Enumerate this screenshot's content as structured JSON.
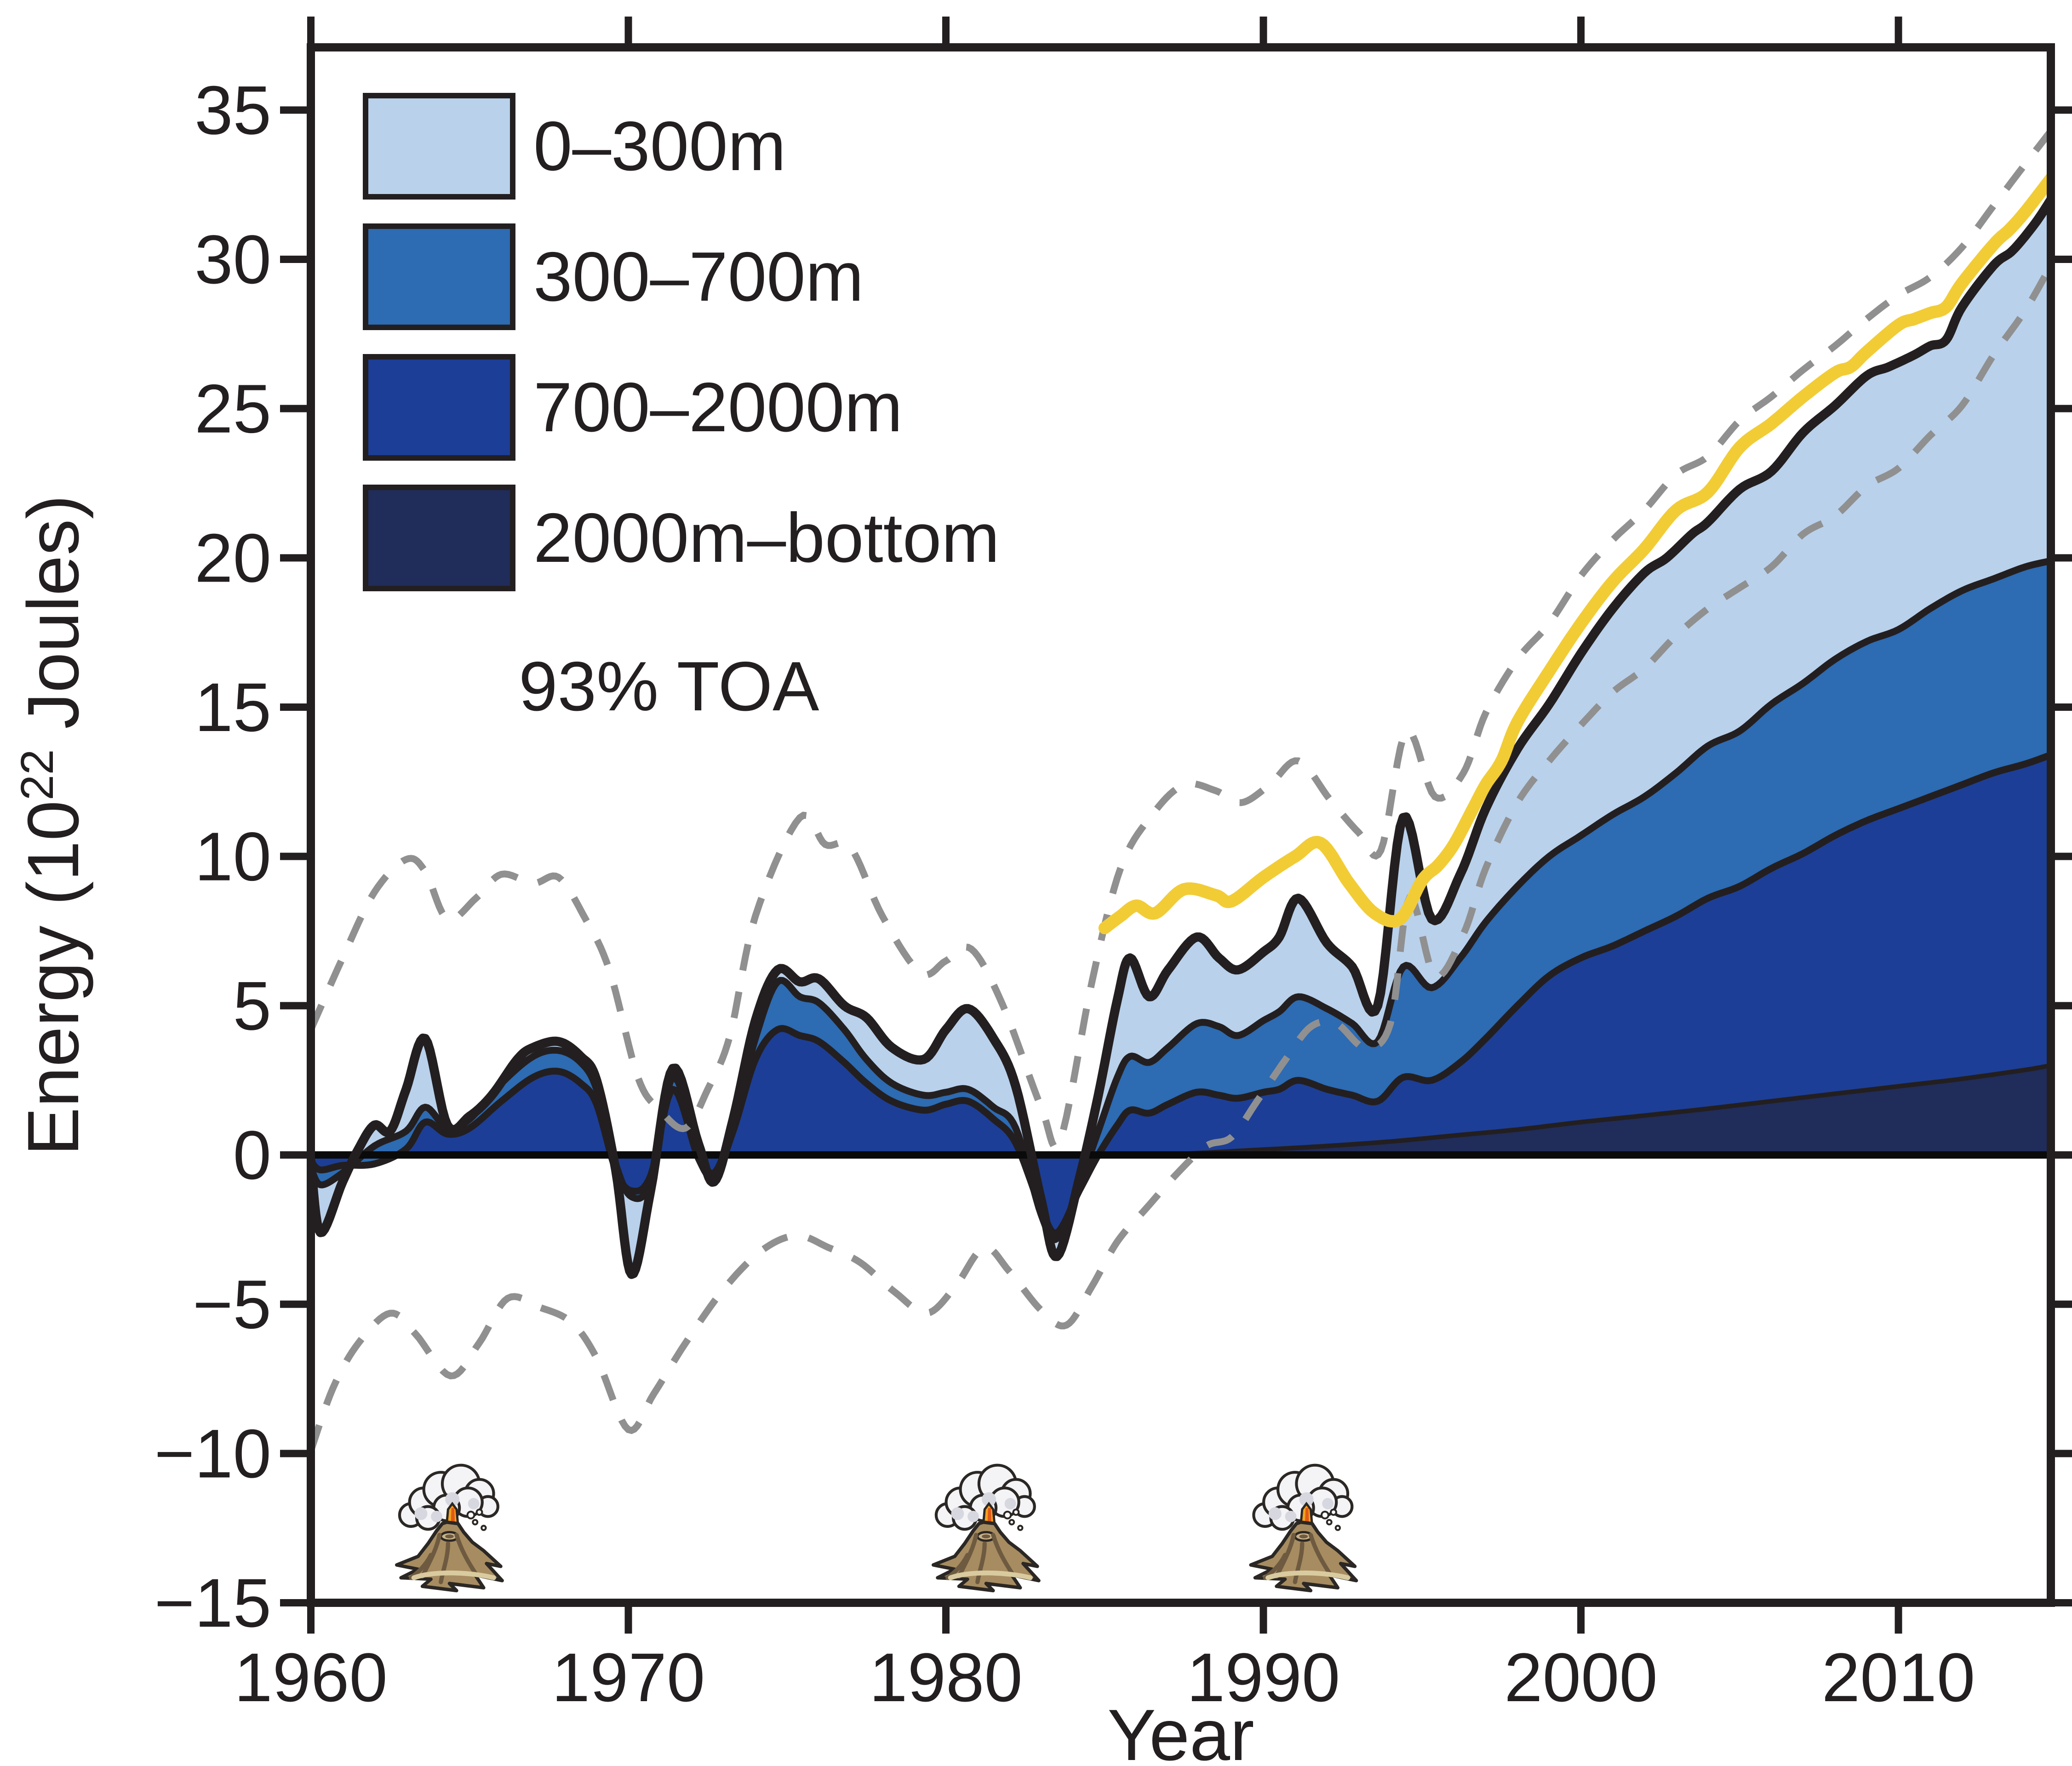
{
  "axes": {
    "x": {
      "label": "Year",
      "ticks": [
        1960,
        1970,
        1980,
        1990,
        2000,
        2010
      ],
      "range": [
        1960,
        2014.8
      ]
    },
    "y": {
      "label_prefix": "Energy (10",
      "label_superscript": "22",
      "label_suffix": " Joules)",
      "ticks": [
        -15,
        -10,
        -5,
        0,
        5,
        10,
        15,
        20,
        25,
        30,
        35
      ],
      "range": [
        -15,
        37.1
      ]
    }
  },
  "legend": {
    "items": [
      {
        "label": "0–300m",
        "color": "#b9d1eb"
      },
      {
        "label": "300–700m",
        "color": "#2d6bb3"
      },
      {
        "label": "700–2000m",
        "color": "#1c3e96"
      },
      {
        "label": "2000m–bottom",
        "color": "#202c5a"
      }
    ],
    "toa": {
      "label": "93% TOA",
      "color": "#f0c94e"
    }
  },
  "colors": {
    "outline": "#231f20",
    "zero_line": "#0a0a0a",
    "uncertainty": "#909090",
    "toa_line": "#f2cc35"
  },
  "volcanic_eruptions": {
    "years": [
      1964.5,
      1981.4,
      1991.4
    ]
  },
  "chart_data": {
    "type": "area",
    "title": "",
    "xlabel": "Year",
    "ylabel": "Energy (10^22 Joules)",
    "units": "10^22 J",
    "x_range": [
      1960,
      2014.8
    ],
    "y_range": [
      -15,
      37.1
    ],
    "legend_position": "upper-left",
    "grid": false,
    "boundaries_note": "cumulative tops of stacked depth layers, relative to 1960",
    "deep_2000m_bottom": [
      [
        1960,
        0
      ],
      [
        1970,
        0
      ],
      [
        1980,
        0
      ],
      [
        1985,
        0
      ],
      [
        1987,
        0.02
      ],
      [
        1990,
        0.18
      ],
      [
        1992,
        0.3
      ],
      [
        1994,
        0.45
      ],
      [
        1996,
        0.65
      ],
      [
        1998,
        0.85
      ],
      [
        2000,
        1.1
      ],
      [
        2002,
        1.32
      ],
      [
        2004,
        1.55
      ],
      [
        2006,
        1.8
      ],
      [
        2008,
        2.05
      ],
      [
        2010,
        2.3
      ],
      [
        2012,
        2.55
      ],
      [
        2014,
        2.85
      ],
      [
        2014.8,
        3.0
      ]
    ],
    "top_700_2000m": [
      [
        1960,
        -0.2
      ],
      [
        1960.3,
        -0.5
      ],
      [
        1961,
        -0.35
      ],
      [
        1962,
        -0.3
      ],
      [
        1963,
        0.2
      ],
      [
        1963.6,
        1.1
      ],
      [
        1964.3,
        0.7
      ],
      [
        1965,
        0.9
      ],
      [
        1966,
        1.8
      ],
      [
        1967,
        2.6
      ],
      [
        1967.8,
        2.8
      ],
      [
        1968.5,
        2.4
      ],
      [
        1969,
        1.7
      ],
      [
        1969.6,
        -0.5
      ],
      [
        1970.1,
        -1.2
      ],
      [
        1970.7,
        -0.7
      ],
      [
        1971.4,
        2.2
      ],
      [
        1972.2,
        -0.1
      ],
      [
        1972.7,
        -0.7
      ],
      [
        1973.3,
        0.8
      ],
      [
        1974,
        3.2
      ],
      [
        1974.7,
        4.2
      ],
      [
        1975.4,
        4.0
      ],
      [
        1976,
        3.8
      ],
      [
        1976.8,
        3.1
      ],
      [
        1977.5,
        2.4
      ],
      [
        1978.3,
        1.8
      ],
      [
        1979.3,
        1.5
      ],
      [
        1980,
        1.7
      ],
      [
        1980.7,
        1.8
      ],
      [
        1981.5,
        1.2
      ],
      [
        1982.2,
        0.4
      ],
      [
        1983,
        -1.8
      ],
      [
        1983.5,
        -2.6
      ],
      [
        1984.2,
        -1.2
      ],
      [
        1984.8,
        0.0
      ],
      [
        1985.4,
        1.0
      ],
      [
        1985.8,
        1.5
      ],
      [
        1986.4,
        1.4
      ],
      [
        1987,
        1.7
      ],
      [
        1987.9,
        2.1
      ],
      [
        1988.6,
        2.0
      ],
      [
        1989.2,
        1.9
      ],
      [
        1990,
        2.1
      ],
      [
        1990.5,
        2.2
      ],
      [
        1991.1,
        2.5
      ],
      [
        1992,
        2.2
      ],
      [
        1992.8,
        2.0
      ],
      [
        1993.6,
        1.8
      ],
      [
        1994.4,
        2.6
      ],
      [
        1995.3,
        2.5
      ],
      [
        1996.2,
        3.1
      ],
      [
        1997,
        3.9
      ],
      [
        1998,
        5.0
      ],
      [
        1999,
        6.0
      ],
      [
        2000,
        6.6
      ],
      [
        2001,
        7.0
      ],
      [
        2002,
        7.5
      ],
      [
        2003,
        8.0
      ],
      [
        2004,
        8.6
      ],
      [
        2005,
        9.0
      ],
      [
        2006,
        9.6
      ],
      [
        2007,
        10.1
      ],
      [
        2008,
        10.7
      ],
      [
        2009,
        11.2
      ],
      [
        2010,
        11.6
      ],
      [
        2011,
        12.0
      ],
      [
        2012,
        12.4
      ],
      [
        2013,
        12.8
      ],
      [
        2014,
        13.1
      ],
      [
        2014.8,
        13.4
      ]
    ],
    "top_300_700m": [
      [
        1960,
        -0.4
      ],
      [
        1960.3,
        -1.0
      ],
      [
        1961,
        -0.6
      ],
      [
        1962,
        0.3
      ],
      [
        1963,
        0.8
      ],
      [
        1963.6,
        1.6
      ],
      [
        1964.3,
        0.9
      ],
      [
        1965,
        1.2
      ],
      [
        1966,
        2.4
      ],
      [
        1967,
        3.3
      ],
      [
        1967.8,
        3.5
      ],
      [
        1968.5,
        3.1
      ],
      [
        1969,
        2.2
      ],
      [
        1969.6,
        -0.3
      ],
      [
        1970.1,
        -1.4
      ],
      [
        1970.7,
        -0.9
      ],
      [
        1971.4,
        2.6
      ],
      [
        1972.2,
        0.2
      ],
      [
        1972.7,
        -0.6
      ],
      [
        1973.3,
        1.0
      ],
      [
        1974,
        3.9
      ],
      [
        1974.7,
        5.8
      ],
      [
        1975.4,
        5.3
      ],
      [
        1976,
        5.1
      ],
      [
        1976.8,
        4.2
      ],
      [
        1977.5,
        3.2
      ],
      [
        1978.3,
        2.4
      ],
      [
        1979.3,
        2.0
      ],
      [
        1980,
        2.1
      ],
      [
        1980.7,
        2.2
      ],
      [
        1981.5,
        1.6
      ],
      [
        1982.2,
        0.9
      ],
      [
        1983,
        -2.0
      ],
      [
        1983.5,
        -2.8
      ],
      [
        1984.2,
        -1.0
      ],
      [
        1984.8,
        0.8
      ],
      [
        1985.4,
        2.6
      ],
      [
        1985.8,
        3.3
      ],
      [
        1986.4,
        3.1
      ],
      [
        1987,
        3.6
      ],
      [
        1987.9,
        4.4
      ],
      [
        1988.6,
        4.3
      ],
      [
        1989.2,
        4.0
      ],
      [
        1990,
        4.5
      ],
      [
        1990.5,
        4.8
      ],
      [
        1991.1,
        5.3
      ],
      [
        1992,
        4.9
      ],
      [
        1992.8,
        4.4
      ],
      [
        1993.6,
        3.8
      ],
      [
        1994.4,
        6.3
      ],
      [
        1995.3,
        5.6
      ],
      [
        1996.2,
        6.6
      ],
      [
        1997,
        7.8
      ],
      [
        1998,
        9.0
      ],
      [
        1999,
        10.0
      ],
      [
        2000,
        10.7
      ],
      [
        2001,
        11.4
      ],
      [
        2002,
        12.0
      ],
      [
        2003,
        12.8
      ],
      [
        2004,
        13.7
      ],
      [
        2005,
        14.2
      ],
      [
        2006,
        15.1
      ],
      [
        2007,
        15.8
      ],
      [
        2008,
        16.6
      ],
      [
        2009,
        17.2
      ],
      [
        2010,
        17.6
      ],
      [
        2011,
        18.3
      ],
      [
        2012,
        18.9
      ],
      [
        2013,
        19.3
      ],
      [
        2014,
        19.7
      ],
      [
        2014.8,
        19.9
      ]
    ],
    "total_top_0_300m": [
      [
        1960,
        -0.2
      ],
      [
        1960.3,
        -2.6
      ],
      [
        1961,
        -0.9
      ],
      [
        1961.5,
        0.2
      ],
      [
        1962,
        1.0
      ],
      [
        1962.5,
        0.8
      ],
      [
        1963,
        2.2
      ],
      [
        1963.6,
        3.9
      ],
      [
        1964.3,
        1.0
      ],
      [
        1965,
        1.3
      ],
      [
        1965.7,
        2.0
      ],
      [
        1966.5,
        3.2
      ],
      [
        1967,
        3.6
      ],
      [
        1967.8,
        3.8
      ],
      [
        1968.5,
        3.3
      ],
      [
        1969,
        2.5
      ],
      [
        1969.6,
        -0.5
      ],
      [
        1970.1,
        -4.0
      ],
      [
        1970.7,
        -1.2
      ],
      [
        1971.4,
        2.9
      ],
      [
        1972.2,
        0.4
      ],
      [
        1972.7,
        -0.9
      ],
      [
        1973.3,
        1.2
      ],
      [
        1974,
        4.5
      ],
      [
        1974.7,
        6.2
      ],
      [
        1975.4,
        5.8
      ],
      [
        1976,
        5.9
      ],
      [
        1976.8,
        5.0
      ],
      [
        1977.5,
        4.6
      ],
      [
        1978.3,
        3.6
      ],
      [
        1979.3,
        3.2
      ],
      [
        1980,
        4.2
      ],
      [
        1980.7,
        4.9
      ],
      [
        1981.5,
        3.9
      ],
      [
        1982.2,
        2.3
      ],
      [
        1983,
        -1.5
      ],
      [
        1983.5,
        -3.4
      ],
      [
        1984.2,
        -0.8
      ],
      [
        1984.8,
        2.0
      ],
      [
        1985.4,
        5.2
      ],
      [
        1985.8,
        6.6
      ],
      [
        1986.4,
        5.3
      ],
      [
        1987,
        6.2
      ],
      [
        1987.9,
        7.3
      ],
      [
        1988.6,
        6.6
      ],
      [
        1989.2,
        6.2
      ],
      [
        1990,
        6.8
      ],
      [
        1990.5,
        7.3
      ],
      [
        1991.1,
        8.6
      ],
      [
        1992,
        7.1
      ],
      [
        1992.8,
        6.3
      ],
      [
        1993.6,
        5.0
      ],
      [
        1994.4,
        11.3
      ],
      [
        1995.3,
        7.9
      ],
      [
        1996.2,
        9.4
      ],
      [
        1997,
        11.6
      ],
      [
        1998,
        13.6
      ],
      [
        1999,
        15.1
      ],
      [
        2000,
        16.8
      ],
      [
        2001,
        18.3
      ],
      [
        2002,
        19.5
      ],
      [
        2002.7,
        20.0
      ],
      [
        2003.5,
        20.8
      ],
      [
        2004,
        21.2
      ],
      [
        2005,
        22.3
      ],
      [
        2006,
        22.9
      ],
      [
        2007,
        24.2
      ],
      [
        2008,
        25.1
      ],
      [
        2009,
        26.1
      ],
      [
        2009.7,
        26.4
      ],
      [
        2010.5,
        26.8
      ],
      [
        2011,
        27.1
      ],
      [
        2011.5,
        27.3
      ],
      [
        2012,
        28.4
      ],
      [
        2013,
        29.8
      ],
      [
        2013.6,
        30.3
      ],
      [
        2014.3,
        31.2
      ],
      [
        2014.8,
        32.0
      ]
    ],
    "toa_93pct": [
      [
        1985,
        7.6
      ],
      [
        1985.5,
        8.0
      ],
      [
        1986,
        8.35
      ],
      [
        1986.6,
        8.1
      ],
      [
        1987.5,
        8.9
      ],
      [
        1988.5,
        8.7
      ],
      [
        1989,
        8.5
      ],
      [
        1990,
        9.3
      ],
      [
        1991,
        10.0
      ],
      [
        1991.8,
        10.45
      ],
      [
        1992.7,
        9.1
      ],
      [
        1993.5,
        8.1
      ],
      [
        1994.3,
        7.9
      ],
      [
        1995,
        9.2
      ],
      [
        1995.5,
        9.7
      ],
      [
        1996,
        10.4
      ],
      [
        1996.6,
        11.6
      ],
      [
        1997,
        12.4
      ],
      [
        1997.5,
        13.2
      ],
      [
        1998,
        14.5
      ],
      [
        1999,
        16.2
      ],
      [
        2000,
        17.8
      ],
      [
        2001,
        19.2
      ],
      [
        2002,
        20.3
      ],
      [
        2003,
        21.6
      ],
      [
        2004,
        22.2
      ],
      [
        2005,
        23.7
      ],
      [
        2006,
        24.5
      ],
      [
        2007,
        25.4
      ],
      [
        2008,
        26.2
      ],
      [
        2008.5,
        26.4
      ],
      [
        2009,
        26.9
      ],
      [
        2010,
        27.8
      ],
      [
        2010.5,
        28.0
      ],
      [
        2011,
        28.2
      ],
      [
        2011.5,
        28.4
      ],
      [
        2012,
        29.2
      ],
      [
        2013,
        30.5
      ],
      [
        2013.5,
        31.0
      ],
      [
        2014,
        31.6
      ],
      [
        2014.8,
        32.7
      ]
    ],
    "uncertainty_upper": [
      [
        1960,
        4.2
      ],
      [
        1961,
        6.6
      ],
      [
        1962,
        8.8
      ],
      [
        1963,
        9.9
      ],
      [
        1963.6,
        9.5
      ],
      [
        1964.3,
        7.9
      ],
      [
        1965.2,
        8.6
      ],
      [
        1966,
        9.4
      ],
      [
        1967,
        9.1
      ],
      [
        1967.8,
        9.3
      ],
      [
        1968.6,
        8.0
      ],
      [
        1969.4,
        6.2
      ],
      [
        1970.3,
        2.6
      ],
      [
        1971,
        1.5
      ],
      [
        1971.8,
        0.9
      ],
      [
        1972.5,
        2.2
      ],
      [
        1973.2,
        4.0
      ],
      [
        1974,
        8.0
      ],
      [
        1975.4,
        11.3
      ],
      [
        1976.2,
        10.4
      ],
      [
        1977,
        10.3
      ],
      [
        1978,
        8.0
      ],
      [
        1979.2,
        6.1
      ],
      [
        1980,
        6.5
      ],
      [
        1980.8,
        6.9
      ],
      [
        1981.8,
        5.0
      ],
      [
        1983,
        1.6
      ],
      [
        1983.6,
        0.5
      ],
      [
        1984.6,
        5.8
      ],
      [
        1985.5,
        9.6
      ],
      [
        1986.5,
        11.4
      ],
      [
        1987.5,
        12.4
      ],
      [
        1988.5,
        12.2
      ],
      [
        1989.3,
        11.8
      ],
      [
        1990.2,
        12.4
      ],
      [
        1991.1,
        13.2
      ],
      [
        1992.1,
        11.9
      ],
      [
        1993,
        10.8
      ],
      [
        1993.7,
        10.2
      ],
      [
        1994.5,
        14.2
      ],
      [
        1995.4,
        12.0
      ],
      [
        1996.3,
        12.8
      ],
      [
        1997,
        14.8
      ],
      [
        1998,
        16.6
      ],
      [
        1999,
        17.8
      ],
      [
        2000,
        19.4
      ],
      [
        2001,
        20.6
      ],
      [
        2002,
        21.6
      ],
      [
        2003,
        22.8
      ],
      [
        2004,
        23.4
      ],
      [
        2005,
        24.6
      ],
      [
        2006,
        25.4
      ],
      [
        2007,
        26.3
      ],
      [
        2008,
        27.1
      ],
      [
        2009,
        28.0
      ],
      [
        2010,
        28.8
      ],
      [
        2011,
        29.4
      ],
      [
        2012,
        30.4
      ],
      [
        2013,
        31.8
      ],
      [
        2014,
        33.2
      ],
      [
        2014.8,
        34.3
      ]
    ],
    "uncertainty_lower": [
      [
        1960,
        -9.9
      ],
      [
        1960.7,
        -7.8
      ],
      [
        1961.5,
        -6.3
      ],
      [
        1962.5,
        -5.3
      ],
      [
        1963.3,
        -6.0
      ],
      [
        1964.4,
        -7.4
      ],
      [
        1965.3,
        -6.3
      ],
      [
        1966.2,
        -4.8
      ],
      [
        1967.2,
        -5.1
      ],
      [
        1968.2,
        -5.6
      ],
      [
        1969,
        -6.8
      ],
      [
        1970,
        -9.2
      ],
      [
        1970.8,
        -8.0
      ],
      [
        1971.8,
        -6.3
      ],
      [
        1973,
        -4.5
      ],
      [
        1974.2,
        -3.2
      ],
      [
        1975.3,
        -2.7
      ],
      [
        1976.3,
        -3.1
      ],
      [
        1977.3,
        -3.6
      ],
      [
        1978.4,
        -4.6
      ],
      [
        1979.4,
        -5.3
      ],
      [
        1980.3,
        -4.4
      ],
      [
        1981.2,
        -3.1
      ],
      [
        1982,
        -3.9
      ],
      [
        1983,
        -5.2
      ],
      [
        1983.8,
        -5.7
      ],
      [
        1984.6,
        -4.4
      ],
      [
        1985.4,
        -2.9
      ],
      [
        1986.3,
        -1.8
      ],
      [
        1987.3,
        -0.6
      ],
      [
        1988.2,
        0.3
      ],
      [
        1989,
        0.6
      ],
      [
        1989.8,
        1.8
      ],
      [
        1990.7,
        3.2
      ],
      [
        1991.5,
        4.3
      ],
      [
        1992.3,
        4.4
      ],
      [
        1993.2,
        3.6
      ],
      [
        1994,
        4.4
      ],
      [
        1994.6,
        8.6
      ],
      [
        1995.4,
        6.0
      ],
      [
        1996.3,
        7.4
      ],
      [
        1997,
        9.6
      ],
      [
        1998,
        11.8
      ],
      [
        1999,
        13.2
      ],
      [
        2000,
        14.4
      ],
      [
        2001,
        15.5
      ],
      [
        2002,
        16.3
      ],
      [
        2003,
        17.4
      ],
      [
        2004,
        18.3
      ],
      [
        2005,
        19.0
      ],
      [
        2006,
        19.7
      ],
      [
        2007,
        20.8
      ],
      [
        2008,
        21.4
      ],
      [
        2009,
        22.4
      ],
      [
        2010,
        23.0
      ],
      [
        2011,
        24.1
      ],
      [
        2012,
        25.1
      ],
      [
        2013,
        26.8
      ],
      [
        2014,
        28.3
      ],
      [
        2014.8,
        29.8
      ]
    ]
  }
}
